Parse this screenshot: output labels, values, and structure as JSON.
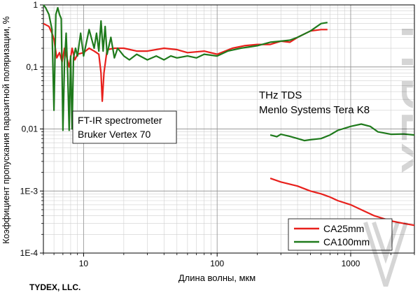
{
  "chart_data": {
    "type": "line",
    "xscale": "log",
    "yscale": "log",
    "xlim": [
      5,
      3000
    ],
    "ylim": [
      0.0001,
      1
    ],
    "grid": true,
    "xlabel": "Длина волны, мкм",
    "ylabel": "Коэффициент пропускания паразитной поляризации, %",
    "x_tick_labels": [
      {
        "value": 10,
        "label": "10"
      },
      {
        "value": 100,
        "label": "100"
      },
      {
        "value": 1000,
        "label": "1000"
      }
    ],
    "y_tick_labels": [
      {
        "value": 1,
        "label": "1"
      },
      {
        "value": 0.1,
        "label": "0,1"
      },
      {
        "value": 0.01,
        "label": "0,01"
      },
      {
        "value": 0.001,
        "label": "1E-3"
      },
      {
        "value": 0.0001,
        "label": "1E-4"
      }
    ],
    "annotations": [
      {
        "lines": [
          "FT-IR spectrometer",
          "Bruker Vertex 70"
        ],
        "boxed": true
      },
      {
        "lines": [
          "THz TDS",
          "Menlo Systems Tera K8"
        ],
        "boxed": false
      }
    ],
    "legend_position": "bottom-right",
    "series": [
      {
        "name": "CA25mm",
        "color": "#e8201c",
        "segments": [
          [
            [
              5,
              0.5
            ],
            [
              5.5,
              0.45
            ],
            [
              5.8,
              0.35
            ],
            [
              6.0,
              0.28
            ],
            [
              6.3,
              0.14
            ],
            [
              6.6,
              0.17
            ],
            [
              6.9,
              0.12
            ],
            [
              7.2,
              0.2
            ],
            [
              7.5,
              0.14
            ],
            [
              7.8,
              0.1
            ],
            [
              8.2,
              0.2
            ],
            [
              8.6,
              0.13
            ],
            [
              9,
              0.16
            ],
            [
              10,
              0.17
            ],
            [
              11,
              0.2
            ],
            [
              12,
              0.18
            ],
            [
              13,
              0.16
            ],
            [
              13.5,
              0.08
            ],
            [
              13.8,
              0.028
            ],
            [
              14.2,
              0.08
            ],
            [
              15,
              0.19
            ],
            [
              17,
              0.2
            ],
            [
              20,
              0.2
            ],
            [
              25,
              0.18
            ],
            [
              30,
              0.18
            ],
            [
              40,
              0.2
            ],
            [
              50,
              0.19
            ],
            [
              60,
              0.17
            ],
            [
              80,
              0.18
            ],
            [
              100,
              0.16
            ],
            [
              130,
              0.2
            ],
            [
              160,
              0.22
            ],
            [
              200,
              0.23
            ],
            [
              250,
              0.23
            ],
            [
              300,
              0.26
            ],
            [
              350,
              0.25
            ],
            [
              400,
              0.3
            ],
            [
              500,
              0.38
            ],
            [
              600,
              0.4
            ],
            [
              670,
              0.4
            ]
          ],
          [
            [
              250,
              0.0016
            ],
            [
              300,
              0.0014
            ],
            [
              400,
              0.0012
            ],
            [
              500,
              0.001
            ],
            [
              600,
              0.0009
            ],
            [
              700,
              0.0008
            ],
            [
              800,
              0.0007
            ],
            [
              1000,
              0.0006
            ],
            [
              1200,
              0.0005
            ],
            [
              1500,
              0.0004
            ],
            [
              2000,
              0.00033
            ],
            [
              2500,
              0.0003
            ],
            [
              3000,
              0.00028
            ]
          ]
        ]
      },
      {
        "name": "CA100mm",
        "color": "#1f7a1c",
        "segments": [
          [
            [
              5,
              1.0
            ],
            [
              5.2,
              0.9
            ],
            [
              5.5,
              0.7
            ],
            [
              5.8,
              0.4
            ],
            [
              6.0,
              0.02
            ],
            [
              6.2,
              0.7
            ],
            [
              6.4,
              0.9
            ],
            [
              6.6,
              0.7
            ],
            [
              6.8,
              0.6
            ],
            [
              7.0,
              0.0095
            ],
            [
              7.2,
              0.12
            ],
            [
              7.4,
              0.35
            ],
            [
              7.6,
              0.08
            ],
            [
              7.8,
              0.0095
            ],
            [
              8.0,
              0.15
            ],
            [
              8.2,
              0.01
            ],
            [
              8.4,
              0.14
            ],
            [
              8.7,
              0.2
            ],
            [
              9,
              0.15
            ],
            [
              9.5,
              0.35
            ],
            [
              10,
              0.15
            ],
            [
              11,
              0.4
            ],
            [
              12,
              0.2
            ],
            [
              12.5,
              0.35
            ],
            [
              13,
              0.18
            ],
            [
              13.5,
              0.55
            ],
            [
              14,
              0.18
            ],
            [
              14.5,
              0.45
            ],
            [
              15,
              0.16
            ],
            [
              16,
              0.3
            ],
            [
              17,
              0.14
            ],
            [
              18,
              0.2
            ],
            [
              20,
              0.15
            ],
            [
              22,
              0.13
            ],
            [
              25,
              0.16
            ],
            [
              30,
              0.13
            ],
            [
              35,
              0.15
            ],
            [
              40,
              0.13
            ],
            [
              45,
              0.15
            ],
            [
              50,
              0.14
            ],
            [
              60,
              0.15
            ],
            [
              70,
              0.14
            ],
            [
              80,
              0.16
            ],
            [
              100,
              0.15
            ],
            [
              120,
              0.18
            ],
            [
              150,
              0.2
            ],
            [
              200,
              0.22
            ],
            [
              250,
              0.25
            ],
            [
              300,
              0.26
            ],
            [
              350,
              0.27
            ],
            [
              400,
              0.3
            ],
            [
              500,
              0.38
            ],
            [
              600,
              0.5
            ],
            [
              670,
              0.52
            ]
          ],
          [
            [
              250,
              0.008
            ],
            [
              280,
              0.0075
            ],
            [
              300,
              0.0082
            ],
            [
              350,
              0.0076
            ],
            [
              400,
              0.007
            ],
            [
              450,
              0.0065
            ],
            [
              500,
              0.0067
            ],
            [
              600,
              0.007
            ],
            [
              700,
              0.008
            ],
            [
              800,
              0.0095
            ],
            [
              1000,
              0.011
            ],
            [
              1200,
              0.012
            ],
            [
              1400,
              0.011
            ],
            [
              1600,
              0.009
            ],
            [
              2000,
              0.0082
            ],
            [
              2500,
              0.0083
            ],
            [
              3000,
              0.008
            ]
          ]
        ]
      }
    ]
  },
  "footer": {
    "brand": "TYDEX, LLC."
  },
  "watermark": {
    "text": "TYDEX"
  }
}
